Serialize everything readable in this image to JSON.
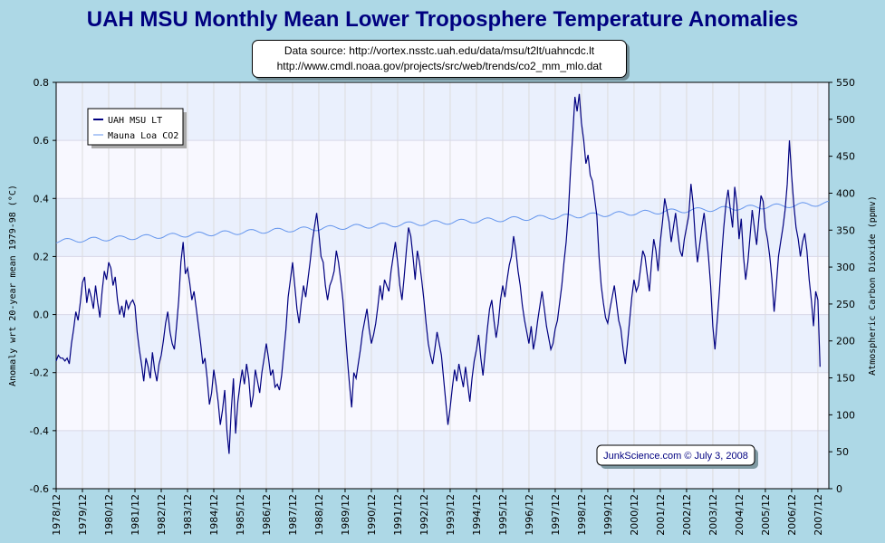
{
  "chart_data": {
    "type": "line",
    "title": "UAH MSU Monthly Mean Lower Troposphere Temperature Anomalies",
    "source_lines": [
      "Data source: http://vortex.nsstc.uah.edu/data/msu/t2lt/uahncdc.lt",
      "http://www.cmdl.noaa.gov/projects/src/web/trends/co2_mm_mlo.dat"
    ],
    "ylabel_left": "Anomaly wrt 20-year mean 1979-98 (°C)",
    "ylabel_right": "Atmospheric Carbon Dioxide (ppmv)",
    "ylim_left": [
      -0.6,
      0.8
    ],
    "ylim_right": [
      0,
      550
    ],
    "left_ticks": [
      "0.8",
      "0.6",
      "0.4",
      "0.2",
      "0.0",
      "-0.2",
      "-0.4",
      "-0.6"
    ],
    "right_ticks": [
      "550",
      "500",
      "450",
      "400",
      "350",
      "300",
      "250",
      "200",
      "150",
      "100",
      "50",
      "0"
    ],
    "xlim": [
      "1978/12",
      "2008/05"
    ],
    "x_tick_labels": [
      "1978/12",
      "1979/12",
      "1980/12",
      "1981/12",
      "1982/12",
      "1983/12",
      "1984/12",
      "1985/12",
      "1986/12",
      "1987/12",
      "1988/12",
      "1989/12",
      "1990/12",
      "1991/12",
      "1992/12",
      "1993/12",
      "1994/12",
      "1995/12",
      "1996/12",
      "1997/12",
      "1998/12",
      "1999/12",
      "2000/12",
      "2001/12",
      "2002/12",
      "2003/12",
      "2004/12",
      "2005/12",
      "2006/12",
      "2007/12"
    ],
    "legend_position": "top-left",
    "grid": true,
    "series": [
      {
        "name": "UAH MSU LT",
        "axis": "left",
        "color": "#000080",
        "start": "1978/12",
        "interval": "month",
        "values": [
          -0.16,
          -0.14,
          -0.15,
          -0.15,
          -0.16,
          -0.15,
          -0.17,
          -0.1,
          -0.05,
          0.01,
          -0.02,
          0.04,
          0.11,
          0.13,
          0.04,
          0.09,
          0.06,
          0.02,
          0.1,
          0.04,
          -0.01,
          0.08,
          0.15,
          0.12,
          0.18,
          0.16,
          0.1,
          0.13,
          0.05,
          0.0,
          0.03,
          -0.01,
          0.05,
          0.02,
          0.04,
          0.05,
          0.03,
          -0.06,
          -0.12,
          -0.17,
          -0.23,
          -0.15,
          -0.18,
          -0.22,
          -0.13,
          -0.19,
          -0.23,
          -0.17,
          -0.14,
          -0.09,
          -0.03,
          0.01,
          -0.06,
          -0.1,
          -0.12,
          -0.04,
          0.05,
          0.18,
          0.25,
          0.14,
          0.16,
          0.11,
          0.05,
          0.08,
          0.02,
          -0.04,
          -0.1,
          -0.17,
          -0.15,
          -0.22,
          -0.31,
          -0.27,
          -0.19,
          -0.24,
          -0.3,
          -0.38,
          -0.33,
          -0.26,
          -0.4,
          -0.48,
          -0.33,
          -0.22,
          -0.41,
          -0.3,
          -0.24,
          -0.19,
          -0.24,
          -0.17,
          -0.22,
          -0.32,
          -0.28,
          -0.19,
          -0.23,
          -0.27,
          -0.2,
          -0.15,
          -0.1,
          -0.15,
          -0.21,
          -0.19,
          -0.25,
          -0.24,
          -0.26,
          -0.21,
          -0.13,
          -0.05,
          0.06,
          0.12,
          0.18,
          0.1,
          0.02,
          -0.03,
          0.04,
          0.1,
          0.06,
          0.12,
          0.18,
          0.25,
          0.3,
          0.35,
          0.28,
          0.2,
          0.18,
          0.1,
          0.05,
          0.1,
          0.12,
          0.15,
          0.22,
          0.18,
          0.12,
          0.05,
          -0.05,
          -0.15,
          -0.24,
          -0.32,
          -0.2,
          -0.22,
          -0.17,
          -0.12,
          -0.06,
          -0.02,
          0.02,
          -0.05,
          -0.1,
          -0.07,
          -0.03,
          0.03,
          0.1,
          0.05,
          0.12,
          0.1,
          0.08,
          0.15,
          0.2,
          0.25,
          0.18,
          0.1,
          0.05,
          0.13,
          0.22,
          0.3,
          0.27,
          0.2,
          0.12,
          0.22,
          0.18,
          0.12,
          0.05,
          -0.03,
          -0.1,
          -0.14,
          -0.17,
          -0.12,
          -0.06,
          -0.1,
          -0.14,
          -0.22,
          -0.3,
          -0.38,
          -0.32,
          -0.25,
          -0.19,
          -0.23,
          -0.17,
          -0.21,
          -0.25,
          -0.18,
          -0.24,
          -0.3,
          -0.22,
          -0.16,
          -0.12,
          -0.07,
          -0.15,
          -0.21,
          -0.13,
          -0.05,
          0.02,
          0.05,
          -0.02,
          -0.08,
          -0.03,
          0.05,
          0.1,
          0.06,
          0.12,
          0.17,
          0.2,
          0.27,
          0.22,
          0.15,
          0.1,
          0.03,
          -0.02,
          -0.06,
          -0.1,
          -0.04,
          -0.12,
          -0.08,
          -0.02,
          0.03,
          0.08,
          0.02,
          -0.04,
          -0.08,
          -0.12,
          -0.1,
          -0.05,
          -0.02,
          0.04,
          0.1,
          0.18,
          0.25,
          0.35,
          0.5,
          0.62,
          0.75,
          0.7,
          0.76,
          0.66,
          0.6,
          0.52,
          0.55,
          0.48,
          0.46,
          0.4,
          0.34,
          0.2,
          0.1,
          0.04,
          -0.01,
          -0.03,
          0.02,
          0.06,
          0.1,
          0.04,
          -0.02,
          -0.05,
          -0.12,
          -0.17,
          -0.1,
          -0.02,
          0.06,
          0.12,
          0.08,
          0.1,
          0.16,
          0.22,
          0.2,
          0.14,
          0.08,
          0.18,
          0.26,
          0.22,
          0.15,
          0.25,
          0.32,
          0.4,
          0.36,
          0.32,
          0.25,
          0.3,
          0.35,
          0.28,
          0.22,
          0.2,
          0.26,
          0.3,
          0.34,
          0.45,
          0.38,
          0.26,
          0.18,
          0.24,
          0.3,
          0.35,
          0.28,
          0.2,
          0.1,
          -0.04,
          -0.12,
          -0.02,
          0.08,
          0.2,
          0.3,
          0.38,
          0.43,
          0.36,
          0.3,
          0.44,
          0.38,
          0.26,
          0.33,
          0.2,
          0.12,
          0.18,
          0.27,
          0.36,
          0.3,
          0.24,
          0.33,
          0.41,
          0.39,
          0.3,
          0.26,
          0.2,
          0.12,
          0.01,
          0.1,
          0.2,
          0.25,
          0.3,
          0.36,
          0.45,
          0.6,
          0.48,
          0.38,
          0.3,
          0.26,
          0.2,
          0.25,
          0.28,
          0.22,
          0.12,
          0.05,
          -0.04,
          0.08,
          0.05,
          -0.18
        ]
      },
      {
        "name": "Mauna Loa CO2",
        "axis": "right",
        "color": "#6495ed",
        "start": "1978/12",
        "interval": "month",
        "trend": {
          "start_ppmv": 335.0,
          "end_ppmv": 386.0,
          "seasonal_amplitude": 3.0
        }
      }
    ],
    "credit": "JunkScience.com © July 3, 2008"
  }
}
